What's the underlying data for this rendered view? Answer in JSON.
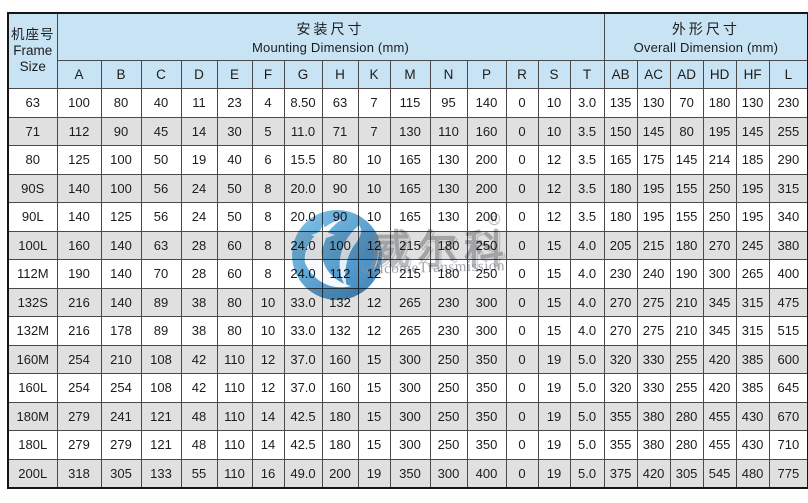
{
  "table": {
    "frame_header": {
      "zh": "机座号",
      "en_line1": "Frame",
      "en_line2": "Size"
    },
    "groups": [
      {
        "title_zh": "安装尺寸",
        "title_en": "Mounting Dimension (mm)",
        "columns": [
          "A",
          "B",
          "C",
          "D",
          "E",
          "F",
          "G",
          "H",
          "K",
          "M",
          "N",
          "P",
          "R",
          "S",
          "T"
        ]
      },
      {
        "title_zh": "外形尺寸",
        "title_en": "Overall Dimension (mm)",
        "columns": [
          "AB",
          "AC",
          "AD",
          "HD",
          "HF",
          "L"
        ]
      }
    ],
    "rows": [
      {
        "frame": "63",
        "values": [
          "100",
          "80",
          "40",
          "11",
          "23",
          "4",
          "8.50",
          "63",
          "7",
          "115",
          "95",
          "140",
          "0",
          "10",
          "3.0",
          "135",
          "130",
          "70",
          "180",
          "130",
          "230"
        ]
      },
      {
        "frame": "71",
        "values": [
          "112",
          "90",
          "45",
          "14",
          "30",
          "5",
          "11.0",
          "71",
          "7",
          "130",
          "110",
          "160",
          "0",
          "10",
          "3.5",
          "150",
          "145",
          "80",
          "195",
          "145",
          "255"
        ]
      },
      {
        "frame": "80",
        "values": [
          "125",
          "100",
          "50",
          "19",
          "40",
          "6",
          "15.5",
          "80",
          "10",
          "165",
          "130",
          "200",
          "0",
          "12",
          "3.5",
          "165",
          "175",
          "145",
          "214",
          "185",
          "290"
        ]
      },
      {
        "frame": "90S",
        "values": [
          "140",
          "100",
          "56",
          "24",
          "50",
          "8",
          "20.0",
          "90",
          "10",
          "165",
          "130",
          "200",
          "0",
          "12",
          "3.5",
          "180",
          "195",
          "155",
          "250",
          "195",
          "315"
        ]
      },
      {
        "frame": "90L",
        "values": [
          "140",
          "125",
          "56",
          "24",
          "50",
          "8",
          "20.0",
          "90",
          "10",
          "165",
          "130",
          "200",
          "0",
          "12",
          "3.5",
          "180",
          "195",
          "155",
          "250",
          "195",
          "340"
        ]
      },
      {
        "frame": "100L",
        "values": [
          "160",
          "140",
          "63",
          "28",
          "60",
          "8",
          "24.0",
          "100",
          "12",
          "215",
          "180",
          "250",
          "0",
          "15",
          "4.0",
          "205",
          "215",
          "180",
          "270",
          "245",
          "380"
        ]
      },
      {
        "frame": "112M",
        "values": [
          "190",
          "140",
          "70",
          "28",
          "60",
          "8",
          "24.0",
          "112",
          "12",
          "215",
          "180",
          "250",
          "0",
          "15",
          "4.0",
          "230",
          "240",
          "190",
          "300",
          "265",
          "400"
        ]
      },
      {
        "frame": "132S",
        "values": [
          "216",
          "140",
          "89",
          "38",
          "80",
          "10",
          "33.0",
          "132",
          "12",
          "265",
          "230",
          "300",
          "0",
          "15",
          "4.0",
          "270",
          "275",
          "210",
          "345",
          "315",
          "475"
        ]
      },
      {
        "frame": "132M",
        "values": [
          "216",
          "178",
          "89",
          "38",
          "80",
          "10",
          "33.0",
          "132",
          "12",
          "265",
          "230",
          "300",
          "0",
          "15",
          "4.0",
          "270",
          "275",
          "210",
          "345",
          "315",
          "515"
        ]
      },
      {
        "frame": "160M",
        "values": [
          "254",
          "210",
          "108",
          "42",
          "110",
          "12",
          "37.0",
          "160",
          "15",
          "300",
          "250",
          "350",
          "0",
          "19",
          "5.0",
          "320",
          "330",
          "255",
          "420",
          "385",
          "600"
        ]
      },
      {
        "frame": "160L",
        "values": [
          "254",
          "254",
          "108",
          "42",
          "110",
          "12",
          "37.0",
          "160",
          "15",
          "300",
          "250",
          "350",
          "0",
          "19",
          "5.0",
          "320",
          "330",
          "255",
          "420",
          "385",
          "645"
        ]
      },
      {
        "frame": "180M",
        "values": [
          "279",
          "241",
          "121",
          "48",
          "110",
          "14",
          "42.5",
          "180",
          "15",
          "300",
          "250",
          "350",
          "0",
          "19",
          "5.0",
          "355",
          "380",
          "280",
          "455",
          "430",
          "670"
        ]
      },
      {
        "frame": "180L",
        "values": [
          "279",
          "279",
          "121",
          "48",
          "110",
          "14",
          "42.5",
          "180",
          "15",
          "300",
          "250",
          "350",
          "0",
          "19",
          "5.0",
          "355",
          "380",
          "280",
          "455",
          "430",
          "710"
        ]
      },
      {
        "frame": "200L",
        "values": [
          "318",
          "305",
          "133",
          "55",
          "110",
          "16",
          "49.0",
          "200",
          "19",
          "350",
          "300",
          "400",
          "0",
          "19",
          "5.0",
          "375",
          "420",
          "305",
          "545",
          "480",
          "775"
        ]
      }
    ]
  },
  "watermark": {
    "brand_zh": "威尔科",
    "registered_mark": "®",
    "brand_en": "welcomeTransmission"
  },
  "colors": {
    "header_bg": "#c8e3f4",
    "row_alt_bg": "#e0e0e0",
    "border": "#4a4a4a",
    "outer_border": "#161616",
    "logo_blue_light": "#5fb5e5",
    "logo_blue_dark": "#1a6bad",
    "watermark_gray": "#8b9096"
  }
}
